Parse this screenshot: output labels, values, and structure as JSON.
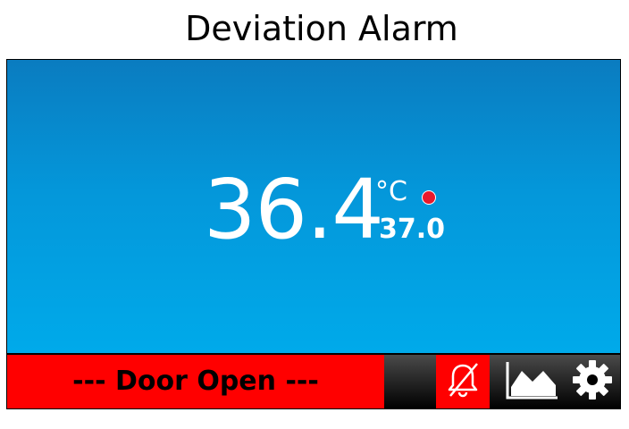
{
  "header": {
    "title": "Deviation Alarm"
  },
  "display": {
    "temperature": "36.4",
    "unit": "°C",
    "setpoint": "37.0",
    "status_color": "#e8192c"
  },
  "footer": {
    "alarm_message": "--- Door Open ---",
    "buttons": [
      {
        "icon": "alarm-mute-icon"
      },
      {
        "icon": "trend-chart-icon"
      },
      {
        "icon": "gear-icon"
      }
    ]
  },
  "colors": {
    "alarm_red": "#ff0000",
    "display_blue_top": "#0a7cc0",
    "display_blue_bottom": "#00aaea"
  }
}
